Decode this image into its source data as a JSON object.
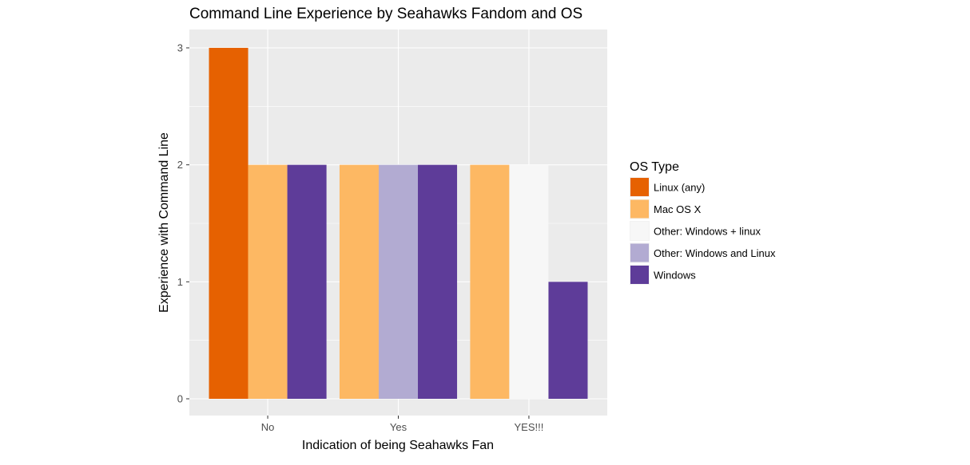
{
  "chart_data": {
    "type": "bar",
    "title": "Command Line Experience by Seahawks Fandom and OS",
    "xlabel": "Indication of being Seahawks Fan",
    "ylabel": "Experience with Command Line",
    "categories": [
      "No",
      "Yes",
      "YES!!!"
    ],
    "yticks": [
      "0",
      "1",
      "2",
      "3"
    ],
    "ylim": [
      0,
      3
    ],
    "grid": true,
    "legend": {
      "title": "OS Type",
      "placement": "right"
    },
    "series": [
      {
        "name": "Linux (any)",
        "color": "#e66101",
        "values": [
          3,
          null,
          null
        ]
      },
      {
        "name": "Mac OS X",
        "color": "#fdb863",
        "values": [
          2,
          2,
          2
        ]
      },
      {
        "name": "Other: Windows + linux",
        "color": "#f7f7f7",
        "values": [
          null,
          null,
          2
        ]
      },
      {
        "name": "Other: Windows and Linux",
        "color": "#b2abd2",
        "values": [
          null,
          2,
          null
        ]
      },
      {
        "name": "Windows",
        "color": "#5e3c99",
        "values": [
          2,
          2,
          1
        ]
      }
    ]
  }
}
